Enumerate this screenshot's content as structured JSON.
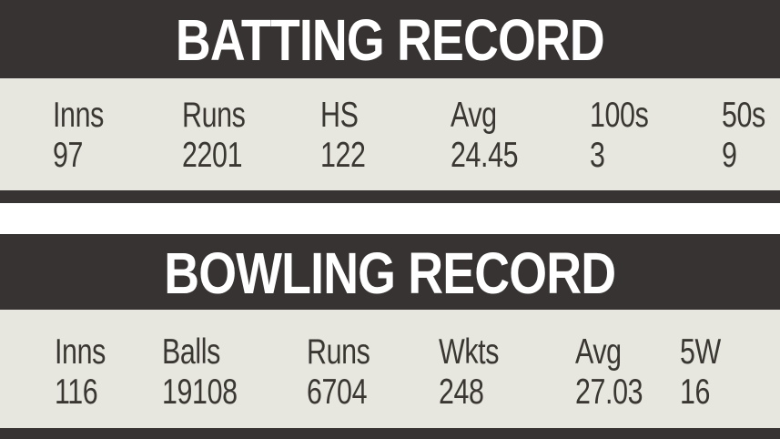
{
  "theme": {
    "dark_bar": "#373332",
    "light_row": "#e8e7df",
    "title_text": "#ffffff",
    "stat_text": "#3a3733",
    "gap": "#ffffff"
  },
  "batting": {
    "title": "BATTING RECORD",
    "columns": [
      {
        "label": "Inns",
        "value": "97"
      },
      {
        "label": "Runs",
        "value": "2201"
      },
      {
        "label": "HS",
        "value": "122"
      },
      {
        "label": "Avg",
        "value": "24.45"
      },
      {
        "label": "100s",
        "value": "3"
      },
      {
        "label": "50s",
        "value": "9"
      }
    ]
  },
  "bowling": {
    "title": "BOWLING RECORD",
    "columns": [
      {
        "label": "Inns",
        "value": "116"
      },
      {
        "label": "Balls",
        "value": "19108"
      },
      {
        "label": "Runs",
        "value": "6704"
      },
      {
        "label": "Wkts",
        "value": "248"
      },
      {
        "label": "Avg",
        "value": "27.03"
      },
      {
        "label": "5W",
        "value": "16"
      }
    ]
  },
  "chart_data": [
    {
      "type": "table",
      "title": "BATTING RECORD",
      "columns": [
        "Inns",
        "Runs",
        "HS",
        "Avg",
        "100s",
        "50s"
      ],
      "rows": [
        [
          "97",
          "2201",
          "122",
          "24.45",
          "3",
          "9"
        ]
      ]
    },
    {
      "type": "table",
      "title": "BOWLING RECORD",
      "columns": [
        "Inns",
        "Balls",
        "Runs",
        "Wkts",
        "Avg",
        "5W"
      ],
      "rows": [
        [
          "116",
          "19108",
          "6704",
          "248",
          "27.03",
          "16"
        ]
      ]
    }
  ]
}
